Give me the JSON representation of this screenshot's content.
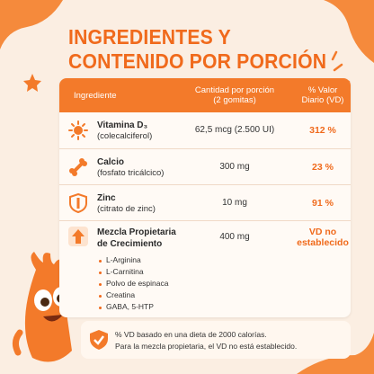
{
  "header": {
    "title_lines": [
      "INGREDIENTES Y",
      "CONTENIDO POR PORCIÓN"
    ]
  },
  "table": {
    "columns": [
      [
        "Ingrediente"
      ],
      [
        "Cantidad por porción",
        "(2 gomitas)"
      ],
      [
        "% Valor",
        "Diario (VD)"
      ]
    ],
    "rows": [
      {
        "name": "Vitamina D₃",
        "detail": "(colecalciferol)",
        "amount": "62,5 mcg (2.500 UI)",
        "dv": "312 %"
      },
      {
        "name": "Calcio",
        "detail": "(fosfato tricálcico)",
        "amount": "300 mg",
        "dv": "23 %"
      },
      {
        "name": "Zinc",
        "detail": "(citrato de zinc)",
        "amount": "10 mg",
        "dv": "91 %"
      },
      {
        "name": "Mezcla Propietaria de Crecimiento",
        "amount": "400 mg",
        "dv": "VD no establecido",
        "items": [
          "L-Arginina",
          "L-Carnitina",
          "Polvo de espinaca",
          "Creatina",
          "GABA, 5-HTP"
        ]
      }
    ]
  },
  "footnote": [
    "% VD basado en una dieta de 2000 calorías.",
    "Para la mezcla propietaria, el VD no está establecido."
  ]
}
